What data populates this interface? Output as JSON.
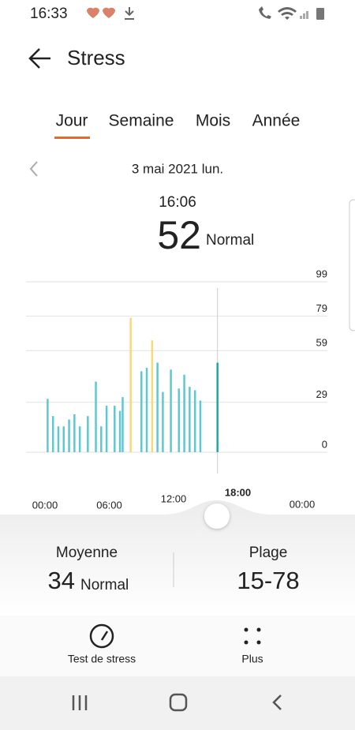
{
  "status_bar": {
    "time": "16:33"
  },
  "header": {
    "title": "Stress"
  },
  "tabs": [
    "Jour",
    "Semaine",
    "Mois",
    "Année"
  ],
  "date": "3 mai 2021 lun.",
  "selection": {
    "time": "16:06",
    "value": "52",
    "level": "Normal"
  },
  "chart_data": {
    "type": "bar",
    "x": [
      0.25,
      0.75,
      1.25,
      1.75,
      2.25,
      2.75,
      3.25,
      4.0,
      4.75,
      5.25,
      5.75,
      6.5,
      7.0,
      7.25,
      8.0,
      9.0,
      9.5,
      10.0,
      10.5,
      11.0,
      11.75,
      12.5,
      13.0,
      13.5,
      14.0,
      14.5,
      16.1
    ],
    "values": [
      31,
      21,
      15,
      15,
      19,
      22,
      15,
      21,
      41,
      15,
      27,
      27,
      24,
      32,
      78,
      47,
      49,
      65,
      52,
      35,
      48,
      37,
      45,
      38,
      36,
      30,
      52
    ],
    "colors": [
      "#5ec8d2",
      "#5ec8d2",
      "#5ec8d2",
      "#5ec8d2",
      "#5ec8d2",
      "#5ec8d2",
      "#5ec8d2",
      "#5ec8d2",
      "#5ec8d2",
      "#5ec8d2",
      "#5ec8d2",
      "#5ec8d2",
      "#5ec8d2",
      "#5ec8d2",
      "#f7d97a",
      "#5ec8d2",
      "#5ec8d2",
      "#f7d97a",
      "#5ec8d2",
      "#5ec8d2",
      "#5ec8d2",
      "#5ec8d2",
      "#5ec8d2",
      "#5ec8d2",
      "#5ec8d2",
      "#5ec8d2",
      "#21a89f"
    ],
    "ylim": [
      0,
      99
    ],
    "yticks": [
      0,
      29,
      59,
      79,
      99
    ],
    "grid": true,
    "xlim": [
      0,
      24
    ],
    "xticks": [
      {
        "value": 0,
        "label": "00:00"
      },
      {
        "value": 6,
        "label": "06:00"
      },
      {
        "value": 12,
        "label": "12:00"
      },
      {
        "value": 18,
        "label": "18:00"
      },
      {
        "value": 24,
        "label": "00:00"
      }
    ],
    "selected_x": 16.1
  },
  "summary": {
    "average_label": "Moyenne",
    "average_value": "34",
    "average_level": "Normal",
    "range_label": "Plage",
    "range_value": "15-78"
  },
  "actions": [
    "Test de stress",
    "Plus"
  ]
}
